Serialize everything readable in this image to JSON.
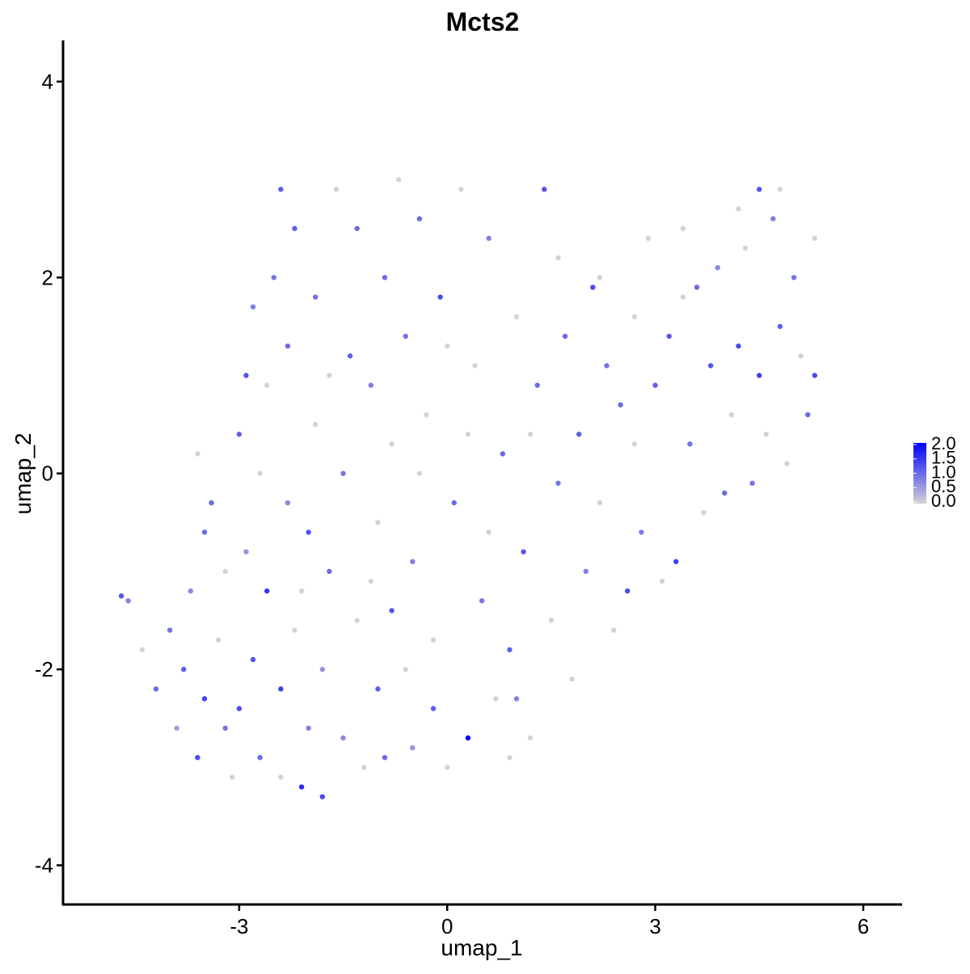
{
  "chart_data": {
    "type": "scatter",
    "title": "Mcts2",
    "x_label": "umap_1",
    "y_label": "umap_2",
    "xlim": [
      -5.54,
      6.56
    ],
    "ylim": [
      -4.4,
      4.42
    ],
    "xticks": [
      -3,
      0,
      3,
      6
    ],
    "yticks": [
      -4,
      -2,
      0,
      2,
      4
    ],
    "low_color": "#d3d3d3",
    "high_color": "#0000ff",
    "colorbar_lim": [
      0,
      2.0
    ],
    "colorbar_ticks": [
      {
        "value": 0,
        "label": "0.0"
      },
      {
        "value": 0.5,
        "label": "0.5"
      },
      {
        "value": 1,
        "label": "1.0"
      },
      {
        "value": 1.5,
        "label": "1.5"
      },
      {
        "value": 2,
        "label": "2.0"
      }
    ],
    "x": [
      -4.7,
      -4.6,
      -4.4,
      -4.2,
      -4.0,
      -3.9,
      -3.8,
      -3.7,
      -3.6,
      -3.5,
      -3.4,
      -3.3,
      -3.2,
      -3.1,
      -3.0,
      -3.0,
      -2.9,
      -2.8,
      -2.8,
      -2.7,
      -2.6,
      -2.6,
      -2.5,
      -2.4,
      -2.4,
      -2.3,
      -2.3,
      -2.2,
      -2.2,
      -2.1,
      -2.0,
      -2.0,
      -1.9,
      -1.9,
      -1.8,
      -1.8,
      -1.7,
      -1.6,
      -1.5,
      -1.5,
      -1.4,
      -1.3,
      -1.3,
      -1.2,
      -1.1,
      -1.0,
      -1.0,
      -0.9,
      -0.8,
      -0.8,
      -0.7,
      -0.6,
      -0.5,
      -0.5,
      -0.4,
      -0.3,
      -0.2,
      -0.2,
      -0.1,
      0.0,
      0.1,
      0.2,
      0.3,
      0.4,
      0.5,
      0.6,
      0.7,
      0.8,
      0.9,
      1.0,
      1.1,
      1.2,
      1.3,
      1.4,
      1.5,
      1.6,
      1.7,
      1.8,
      1.9,
      2.0,
      2.1,
      2.2,
      2.3,
      2.4,
      2.5,
      2.6,
      2.7,
      2.8,
      2.9,
      3.0,
      3.1,
      3.2,
      3.3,
      3.4,
      3.5,
      3.6,
      3.7,
      3.8,
      3.9,
      4.0,
      4.1,
      4.2,
      4.3,
      4.4,
      4.5,
      4.5,
      4.6,
      4.7,
      4.8,
      4.9,
      5.0,
      5.1,
      5.2,
      5.3,
      5.3,
      -3.6,
      -3.2,
      -2.7,
      -2.1,
      -1.7,
      -1.1,
      -0.6,
      -0.4,
      0.0,
      0.3,
      0.6,
      1.0,
      1.2,
      1.6,
      2.2,
      2.7,
      3.4,
      4.2,
      4.8,
      -2.9,
      -3.5,
      -2.4,
      -0.9,
      0.9
    ],
    "y": [
      -1.25,
      -1.3,
      -1.8,
      -2.2,
      -1.6,
      -2.6,
      -2.0,
      -1.2,
      -2.9,
      -2.3,
      -0.3,
      -1.7,
      -2.6,
      -3.1,
      -2.4,
      0.4,
      -0.8,
      -1.9,
      1.7,
      -2.9,
      -1.2,
      0.9,
      2.0,
      -3.1,
      -2.2,
      -0.3,
      1.3,
      -1.6,
      2.5,
      -3.2,
      -0.6,
      -2.6,
      0.5,
      1.8,
      -3.3,
      -2.0,
      -1.0,
      2.9,
      -2.7,
      0.0,
      1.2,
      -1.5,
      2.5,
      -3.0,
      0.9,
      -2.2,
      -0.5,
      2.0,
      -1.4,
      0.3,
      3.0,
      1.4,
      -2.8,
      -0.9,
      2.6,
      0.6,
      -1.7,
      -2.4,
      1.8,
      -3.0,
      -0.3,
      2.9,
      -2.7,
      1.1,
      -1.3,
      2.4,
      -2.3,
      0.2,
      -1.8,
      1.6,
      -0.8,
      -2.7,
      0.9,
      2.9,
      -1.5,
      -0.1,
      1.4,
      -2.1,
      0.4,
      -1.0,
      1.9,
      -0.3,
      1.1,
      -1.6,
      0.7,
      -1.2,
      1.6,
      -0.6,
      2.4,
      0.9,
      -1.1,
      1.4,
      -0.9,
      2.5,
      0.3,
      1.9,
      -0.4,
      1.1,
      2.1,
      -0.2,
      0.6,
      1.3,
      2.3,
      -0.1,
      2.9,
      1.0,
      0.4,
      2.6,
      1.5,
      0.1,
      2.0,
      1.2,
      0.6,
      2.4,
      1.0,
      0.2,
      -1.0,
      0.0,
      -1.2,
      1.0,
      -1.1,
      -2.0,
      0.0,
      1.3,
      0.4,
      -0.6,
      -2.3,
      0.4,
      2.2,
      2.0,
      0.3,
      1.8,
      2.7,
      2.9,
      1.0,
      -0.6,
      2.9,
      -2.9,
      -2.9
    ],
    "values": [
      1.2,
      0.8,
      0,
      1.0,
      0.9,
      0.5,
      1.1,
      0.7,
      1.3,
      1.4,
      1.0,
      0,
      0.9,
      0,
      1.3,
      1.1,
      0.6,
      1.2,
      0.8,
      1.0,
      1.5,
      0,
      0.9,
      0,
      1.4,
      0.7,
      1.0,
      0,
      1.1,
      1.6,
      1.2,
      0.8,
      0,
      0.9,
      1.3,
      0.6,
      1.0,
      0,
      0.7,
      0.9,
      1.1,
      0,
      1.0,
      0,
      0.8,
      1.1,
      0,
      1.0,
      1.2,
      0,
      0,
      0.9,
      0.6,
      0.8,
      1.0,
      0,
      0,
      1.1,
      1.3,
      0,
      1.0,
      0,
      2.0,
      0,
      0.9,
      0.8,
      0,
      1.0,
      1.1,
      0,
      1.2,
      0,
      1.0,
      1.2,
      0,
      0.9,
      1.0,
      0,
      1.1,
      0.8,
      1.3,
      0,
      0.9,
      0,
      1.0,
      1.3,
      0,
      0.8,
      0,
      1.1,
      0,
      1.2,
      1.4,
      0,
      0.9,
      1.0,
      0,
      1.2,
      0.7,
      1.0,
      0,
      1.3,
      0,
      0.9,
      1.2,
      1.4,
      0,
      0.8,
      1.1,
      0,
      0.9,
      0,
      1.0,
      0,
      1.3,
      0,
      0,
      0,
      0,
      0,
      0,
      0,
      0,
      0,
      0,
      0,
      0.8,
      0,
      0,
      0,
      0,
      0,
      0,
      0,
      1.2,
      1.0,
      1.1,
      1.0,
      0
    ]
  }
}
